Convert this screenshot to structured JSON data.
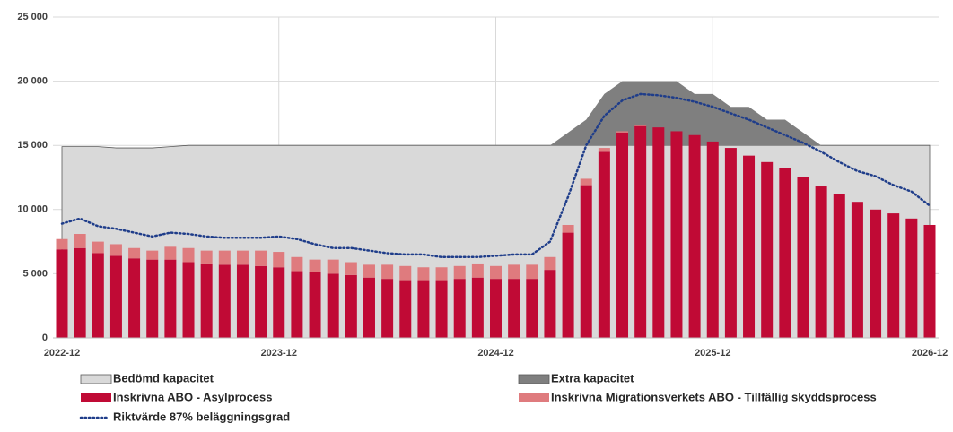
{
  "chart_data": {
    "type": "bar",
    "categories": [
      "2022-12",
      null,
      null,
      null,
      null,
      null,
      null,
      null,
      null,
      null,
      null,
      null,
      "2023-12",
      null,
      null,
      null,
      null,
      null,
      null,
      null,
      null,
      null,
      null,
      null,
      "2024-12",
      null,
      null,
      null,
      null,
      null,
      null,
      null,
      null,
      null,
      null,
      null,
      "2025-12",
      null,
      null,
      null,
      null,
      null,
      null,
      null,
      null,
      null,
      null,
      null,
      "2026-12"
    ],
    "ylim": [
      0,
      25000
    ],
    "yticks": [
      0,
      {
        "value": 5000,
        "label": "5 000"
      },
      {
        "value": 10000,
        "label": "10 000"
      },
      {
        "value": 15000,
        "label": "15 000"
      },
      {
        "value": 20000,
        "label": "20 000"
      },
      {
        "value": 25000,
        "label": "25 000"
      }
    ],
    "grid": true,
    "series": [
      {
        "name": "Bedömd kapacitet",
        "type": "area",
        "color": "#d9d9d9",
        "values": [
          14900,
          14900,
          14900,
          14800,
          14800,
          14800,
          14900,
          15000,
          15000,
          15000,
          15000,
          15000,
          15000,
          15000,
          15000,
          15000,
          15000,
          15000,
          15000,
          15000,
          15000,
          15000,
          15000,
          15000,
          15000,
          15000,
          15000,
          15000,
          15000,
          15000,
          15000,
          15000,
          15000,
          15000,
          15000,
          15000,
          15000,
          15000,
          15000,
          15000,
          15000,
          15000,
          15000,
          15000,
          15000,
          15000,
          15000,
          15000,
          15000
        ]
      },
      {
        "name": "Extra kapacitet",
        "type": "area",
        "color": "#7f7f7f",
        "values": [
          0,
          0,
          0,
          0,
          0,
          0,
          0,
          0,
          0,
          0,
          0,
          0,
          0,
          0,
          0,
          0,
          0,
          0,
          0,
          0,
          0,
          0,
          0,
          0,
          0,
          0,
          0,
          0,
          1000,
          2000,
          4000,
          5000,
          5000,
          5000,
          5000,
          4000,
          4000,
          3000,
          3000,
          2000,
          2000,
          1000,
          0,
          0,
          0,
          0,
          0,
          0,
          0
        ]
      },
      {
        "name": "Inskrivna ABO - Asylprocess",
        "type": "bar",
        "color": "#c00a35",
        "values": [
          6900,
          7000,
          6600,
          6400,
          6200,
          6100,
          6100,
          5900,
          5800,
          5700,
          5700,
          5600,
          5500,
          5200,
          5100,
          5000,
          4900,
          4700,
          4600,
          4500,
          4500,
          4500,
          4600,
          4700,
          4600,
          4600,
          4600,
          5300,
          8200,
          11900,
          14500,
          16000,
          16500,
          16400,
          16100,
          15800,
          15300,
          14800,
          14200,
          13700,
          13200,
          12500,
          11800,
          11200,
          10600,
          10000,
          9700,
          9300,
          8800
        ]
      },
      {
        "name": "Inskrivna Migrationsverkets ABO - Tillfällig skyddsprocess",
        "type": "bar",
        "color": "#df7b7e",
        "values": [
          800,
          1100,
          900,
          900,
          800,
          700,
          1000,
          1100,
          1000,
          1100,
          1100,
          1200,
          1200,
          1100,
          1000,
          1100,
          1000,
          1000,
          1100,
          1100,
          1000,
          1000,
          1000,
          1100,
          1000,
          1100,
          1100,
          1000,
          600,
          500,
          300,
          100,
          100,
          0,
          0,
          0,
          0,
          0,
          0,
          0,
          0,
          0,
          0,
          0,
          0,
          0,
          0,
          0,
          0
        ]
      },
      {
        "name": "Riktvärde  87% beläggningsgrad",
        "type": "line",
        "color": "#1f3d8a",
        "values": [
          8900,
          9300,
          8700,
          8500,
          8200,
          7900,
          8200,
          8100,
          7900,
          7800,
          7800,
          7800,
          7900,
          7700,
          7300,
          7000,
          7000,
          6800,
          6600,
          6500,
          6500,
          6300,
          6300,
          6300,
          6400,
          6500,
          6500,
          7500,
          11000,
          15000,
          17300,
          18500,
          19000,
          18900,
          18700,
          18400,
          18000,
          17500,
          17000,
          16400,
          15800,
          15200,
          14500,
          13700,
          13000,
          12600,
          11900,
          11400,
          10300
        ]
      }
    ]
  }
}
